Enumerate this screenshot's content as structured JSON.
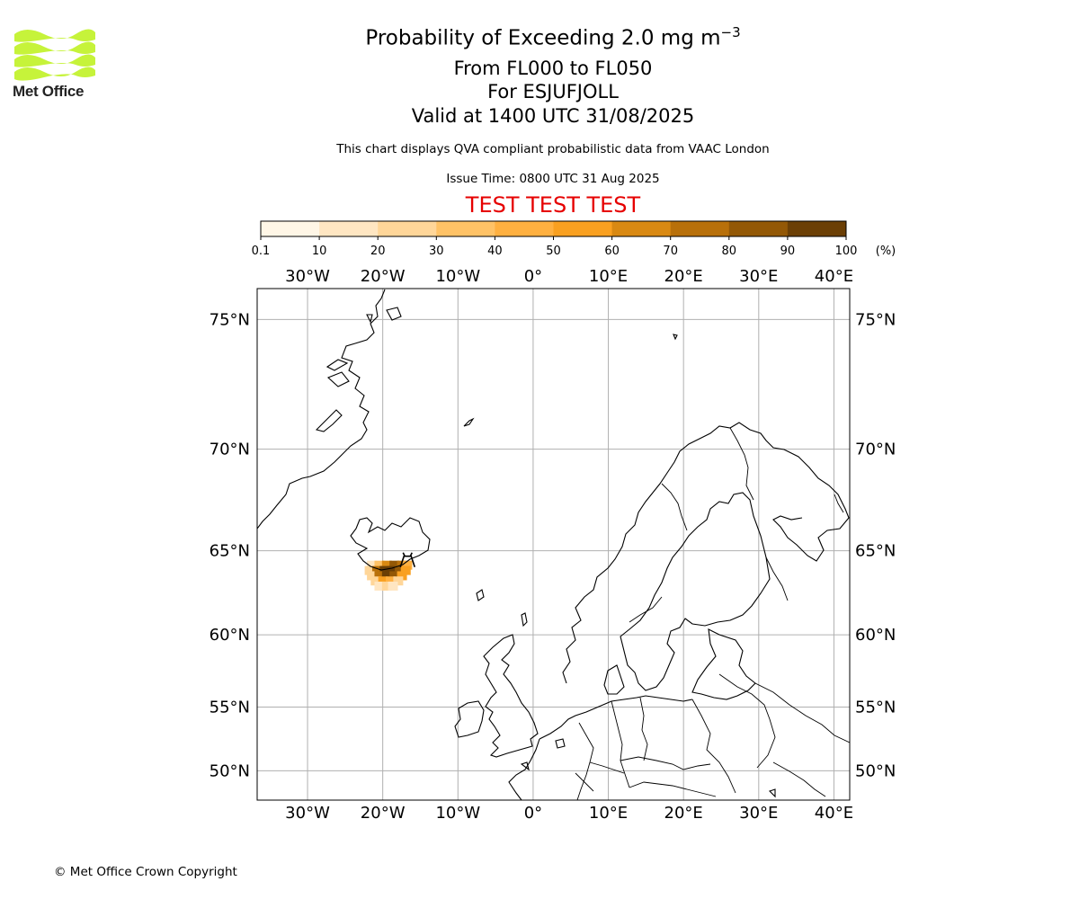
{
  "logo": {
    "text": "Met Office",
    "accent_color": "#c6f33a",
    "icon": "met-office-wave-logo-icon"
  },
  "header": {
    "title_main": "Probability of Exceeding 2.0 mg m",
    "title_sup": "−3",
    "level_range": "From FL000 to FL050",
    "volcano": "For ESJUFJOLL",
    "valid_time": "Valid at 1400 UTC 31/08/2025",
    "description": "This chart displays QVA compliant probabilistic data from VAAC London",
    "issue_time": "Issue Time: 0800 UTC 31 Aug 2025",
    "test_banner": "TEST TEST TEST",
    "test_color": "#e60000"
  },
  "colorbar": {
    "unit": "(%)",
    "ticks": [
      "0.1",
      "10",
      "20",
      "30",
      "40",
      "50",
      "60",
      "70",
      "80",
      "90",
      "100"
    ],
    "colors": [
      "#fff6e6",
      "#ffe6c2",
      "#ffd699",
      "#ffc266",
      "#ffb040",
      "#f9a020",
      "#d98912",
      "#b8700a",
      "#935806",
      "#6b3f05"
    ]
  },
  "map": {
    "lon_labels": [
      "30°W",
      "20°W",
      "10°W",
      "0°",
      "10°E",
      "20°E",
      "30°E",
      "40°E"
    ],
    "lon_values": [
      -30,
      -20,
      -10,
      0,
      10,
      20,
      30,
      40
    ],
    "lat_labels": [
      "75°N",
      "70°N",
      "65°N",
      "60°N",
      "55°N",
      "50°N"
    ],
    "lat_values": [
      75,
      70,
      65,
      60,
      55,
      50
    ],
    "lon_range": [
      -36.7,
      42.1
    ],
    "lat_range": [
      47.5,
      76.0
    ],
    "grid": true,
    "ash_cloud": [
      {
        "lon": -21.5,
        "lat": 64.2,
        "p": 15
      },
      {
        "lon": -20.5,
        "lat": 64.2,
        "p": 35
      },
      {
        "lon": -19.5,
        "lat": 64.2,
        "p": 65
      },
      {
        "lon": -18.5,
        "lat": 64.2,
        "p": 80
      },
      {
        "lon": -17.5,
        "lat": 64.2,
        "p": 75
      },
      {
        "lon": -16.8,
        "lat": 64.2,
        "p": 40
      },
      {
        "lon": -21.8,
        "lat": 63.9,
        "p": 20
      },
      {
        "lon": -20.8,
        "lat": 63.9,
        "p": 75
      },
      {
        "lon": -19.8,
        "lat": 63.9,
        "p": 92
      },
      {
        "lon": -18.8,
        "lat": 63.9,
        "p": 95
      },
      {
        "lon": -17.8,
        "lat": 63.9,
        "p": 85
      },
      {
        "lon": -17.0,
        "lat": 63.9,
        "p": 55
      },
      {
        "lon": -21.5,
        "lat": 63.6,
        "p": 25
      },
      {
        "lon": -20.5,
        "lat": 63.6,
        "p": 70
      },
      {
        "lon": -19.5,
        "lat": 63.6,
        "p": 90
      },
      {
        "lon": -18.5,
        "lat": 63.6,
        "p": 85
      },
      {
        "lon": -17.5,
        "lat": 63.6,
        "p": 55
      },
      {
        "lon": -21.0,
        "lat": 63.3,
        "p": 25
      },
      {
        "lon": -20.0,
        "lat": 63.3,
        "p": 50
      },
      {
        "lon": -19.0,
        "lat": 63.3,
        "p": 45
      },
      {
        "lon": -18.0,
        "lat": 63.3,
        "p": 20
      },
      {
        "lon": -20.5,
        "lat": 63.0,
        "p": 15
      },
      {
        "lon": -19.5,
        "lat": 63.0,
        "p": 20
      },
      {
        "lon": -18.7,
        "lat": 63.0,
        "p": 10
      }
    ]
  },
  "footer": {
    "copyright": "© Met Office Crown Copyright"
  }
}
